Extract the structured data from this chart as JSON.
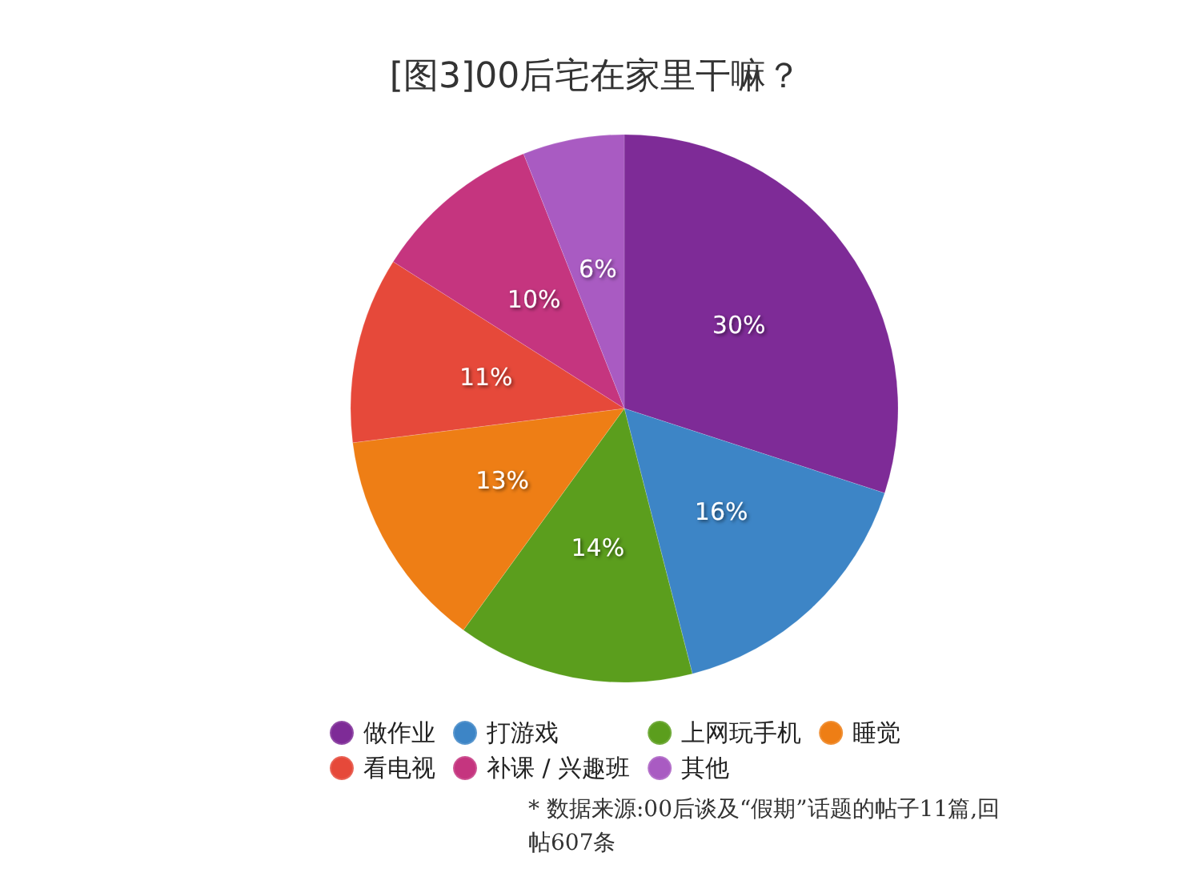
{
  "chart_data": {
    "type": "pie",
    "title": "[图3]00后宅在家里干嘛？",
    "categories": [
      "做作业",
      "打游戏",
      "上网玩手机",
      "睡觉",
      "看电视",
      "补课 / 兴趣班",
      "其他"
    ],
    "values": [
      30,
      16,
      14,
      13,
      11,
      10,
      6
    ],
    "colors": [
      "#7e2b97",
      "#3d85c6",
      "#5b9e1d",
      "#ee7e15",
      "#e6493a",
      "#c5357f",
      "#a95bc2"
    ],
    "value_labels": [
      "30%",
      "16%",
      "14%",
      "13%",
      "11%",
      "10%",
      "6%"
    ],
    "legend": "bottom",
    "annotations": [
      "* 数据来源:00后谈及“假期”话题的帖子11篇,回帖607条"
    ]
  }
}
